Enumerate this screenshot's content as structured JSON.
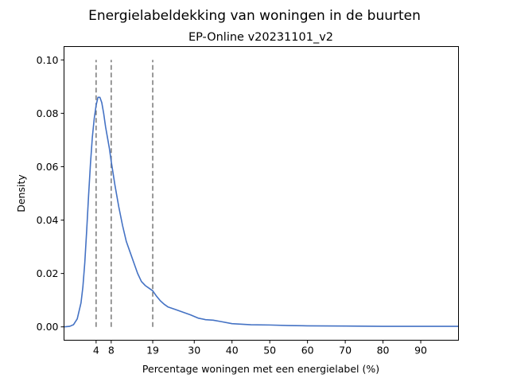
{
  "chart_data": {
    "type": "line",
    "suptitle": "Energielabeldekking van woningen in de buurten",
    "title": "EP-Online v20231101_v2",
    "xlabel": "Percentage woningen met een energielabel (%)",
    "ylabel": "Density",
    "xlim": [
      -4.5,
      100
    ],
    "ylim": [
      -0.005,
      0.105
    ],
    "x_ticks": [
      4,
      8,
      19,
      30,
      40,
      50,
      60,
      70,
      80,
      90
    ],
    "y_ticks": [
      0.0,
      0.02,
      0.04,
      0.06,
      0.08,
      0.1
    ],
    "y_tick_labels": [
      "0.00",
      "0.02",
      "0.04",
      "0.06",
      "0.08",
      "0.10"
    ],
    "grid": false,
    "vlines": [
      {
        "x": 4,
        "ymin": 0.0,
        "ymax": 0.1,
        "style": "dashed",
        "color": "#808080"
      },
      {
        "x": 8,
        "ymin": 0.0,
        "ymax": 0.1,
        "style": "dashed",
        "color": "#808080"
      },
      {
        "x": 19,
        "ymin": 0.0,
        "ymax": 0.1,
        "style": "dashed",
        "color": "#808080"
      }
    ],
    "series": [
      {
        "color": "#4472c4",
        "x": [
          -4.5,
          -3.0,
          -2.0,
          -1.0,
          0.0,
          0.5,
          1.0,
          1.5,
          2.0,
          2.5,
          3.0,
          3.5,
          4.0,
          4.5,
          5.0,
          5.5,
          6.0,
          6.5,
          7.0,
          7.5,
          8.0,
          9.0,
          10.0,
          11.0,
          12.0,
          13.0,
          14.0,
          15.0,
          16.0,
          17.0,
          18.0,
          19.0,
          20.0,
          21.0,
          22.0,
          23.0,
          25.0,
          27.0,
          29.0,
          31.0,
          33.0,
          35.0,
          37.0,
          40.0,
          45.0,
          50.0,
          55.0,
          60.0,
          70.0,
          80.0,
          90.0,
          100.0
        ],
        "y": [
          0.0,
          0.0002,
          0.0008,
          0.003,
          0.009,
          0.015,
          0.024,
          0.036,
          0.049,
          0.061,
          0.071,
          0.078,
          0.083,
          0.086,
          0.086,
          0.084,
          0.08,
          0.075,
          0.071,
          0.067,
          0.062,
          0.053,
          0.045,
          0.038,
          0.032,
          0.028,
          0.024,
          0.02,
          0.017,
          0.0155,
          0.0145,
          0.0135,
          0.0115,
          0.0098,
          0.0085,
          0.0075,
          0.0065,
          0.0055,
          0.0045,
          0.0033,
          0.0027,
          0.0025,
          0.002,
          0.0012,
          0.0008,
          0.0007,
          0.0005,
          0.0004,
          0.0003,
          0.0002,
          0.0002,
          0.0002
        ]
      }
    ]
  }
}
